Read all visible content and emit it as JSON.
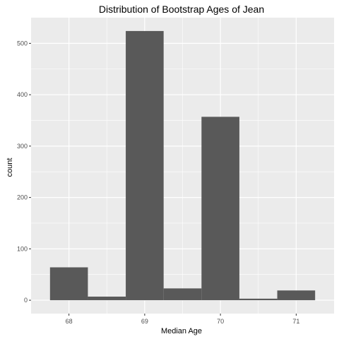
{
  "chart_data": {
    "type": "bar",
    "title": "Distribution of Bootstrap Ages of Jean",
    "xlabel": "Median Age",
    "ylabel": "count",
    "bins": [
      {
        "x0": 67.75,
        "x1": 68.25,
        "count": 64
      },
      {
        "x0": 68.25,
        "x1": 68.75,
        "count": 7
      },
      {
        "x0": 68.75,
        "x1": 69.25,
        "count": 524
      },
      {
        "x0": 69.25,
        "x1": 69.75,
        "count": 23
      },
      {
        "x0": 69.75,
        "x1": 70.25,
        "count": 357
      },
      {
        "x0": 70.25,
        "x1": 70.75,
        "count": 3
      },
      {
        "x0": 70.75,
        "x1": 71.25,
        "count": 19
      }
    ],
    "xlim": [
      67.5,
      71.5
    ],
    "ylim": [
      -26,
      550
    ],
    "xticks": [
      68,
      69,
      70,
      71
    ],
    "yticks": [
      0,
      100,
      200,
      300,
      400,
      500
    ],
    "grid": true,
    "colors": {
      "panel": "#ebebeb",
      "grid_major": "#ffffff",
      "bar": "#595959",
      "tick_text": "#4d4d4d",
      "tick_mark": "#333333"
    }
  }
}
